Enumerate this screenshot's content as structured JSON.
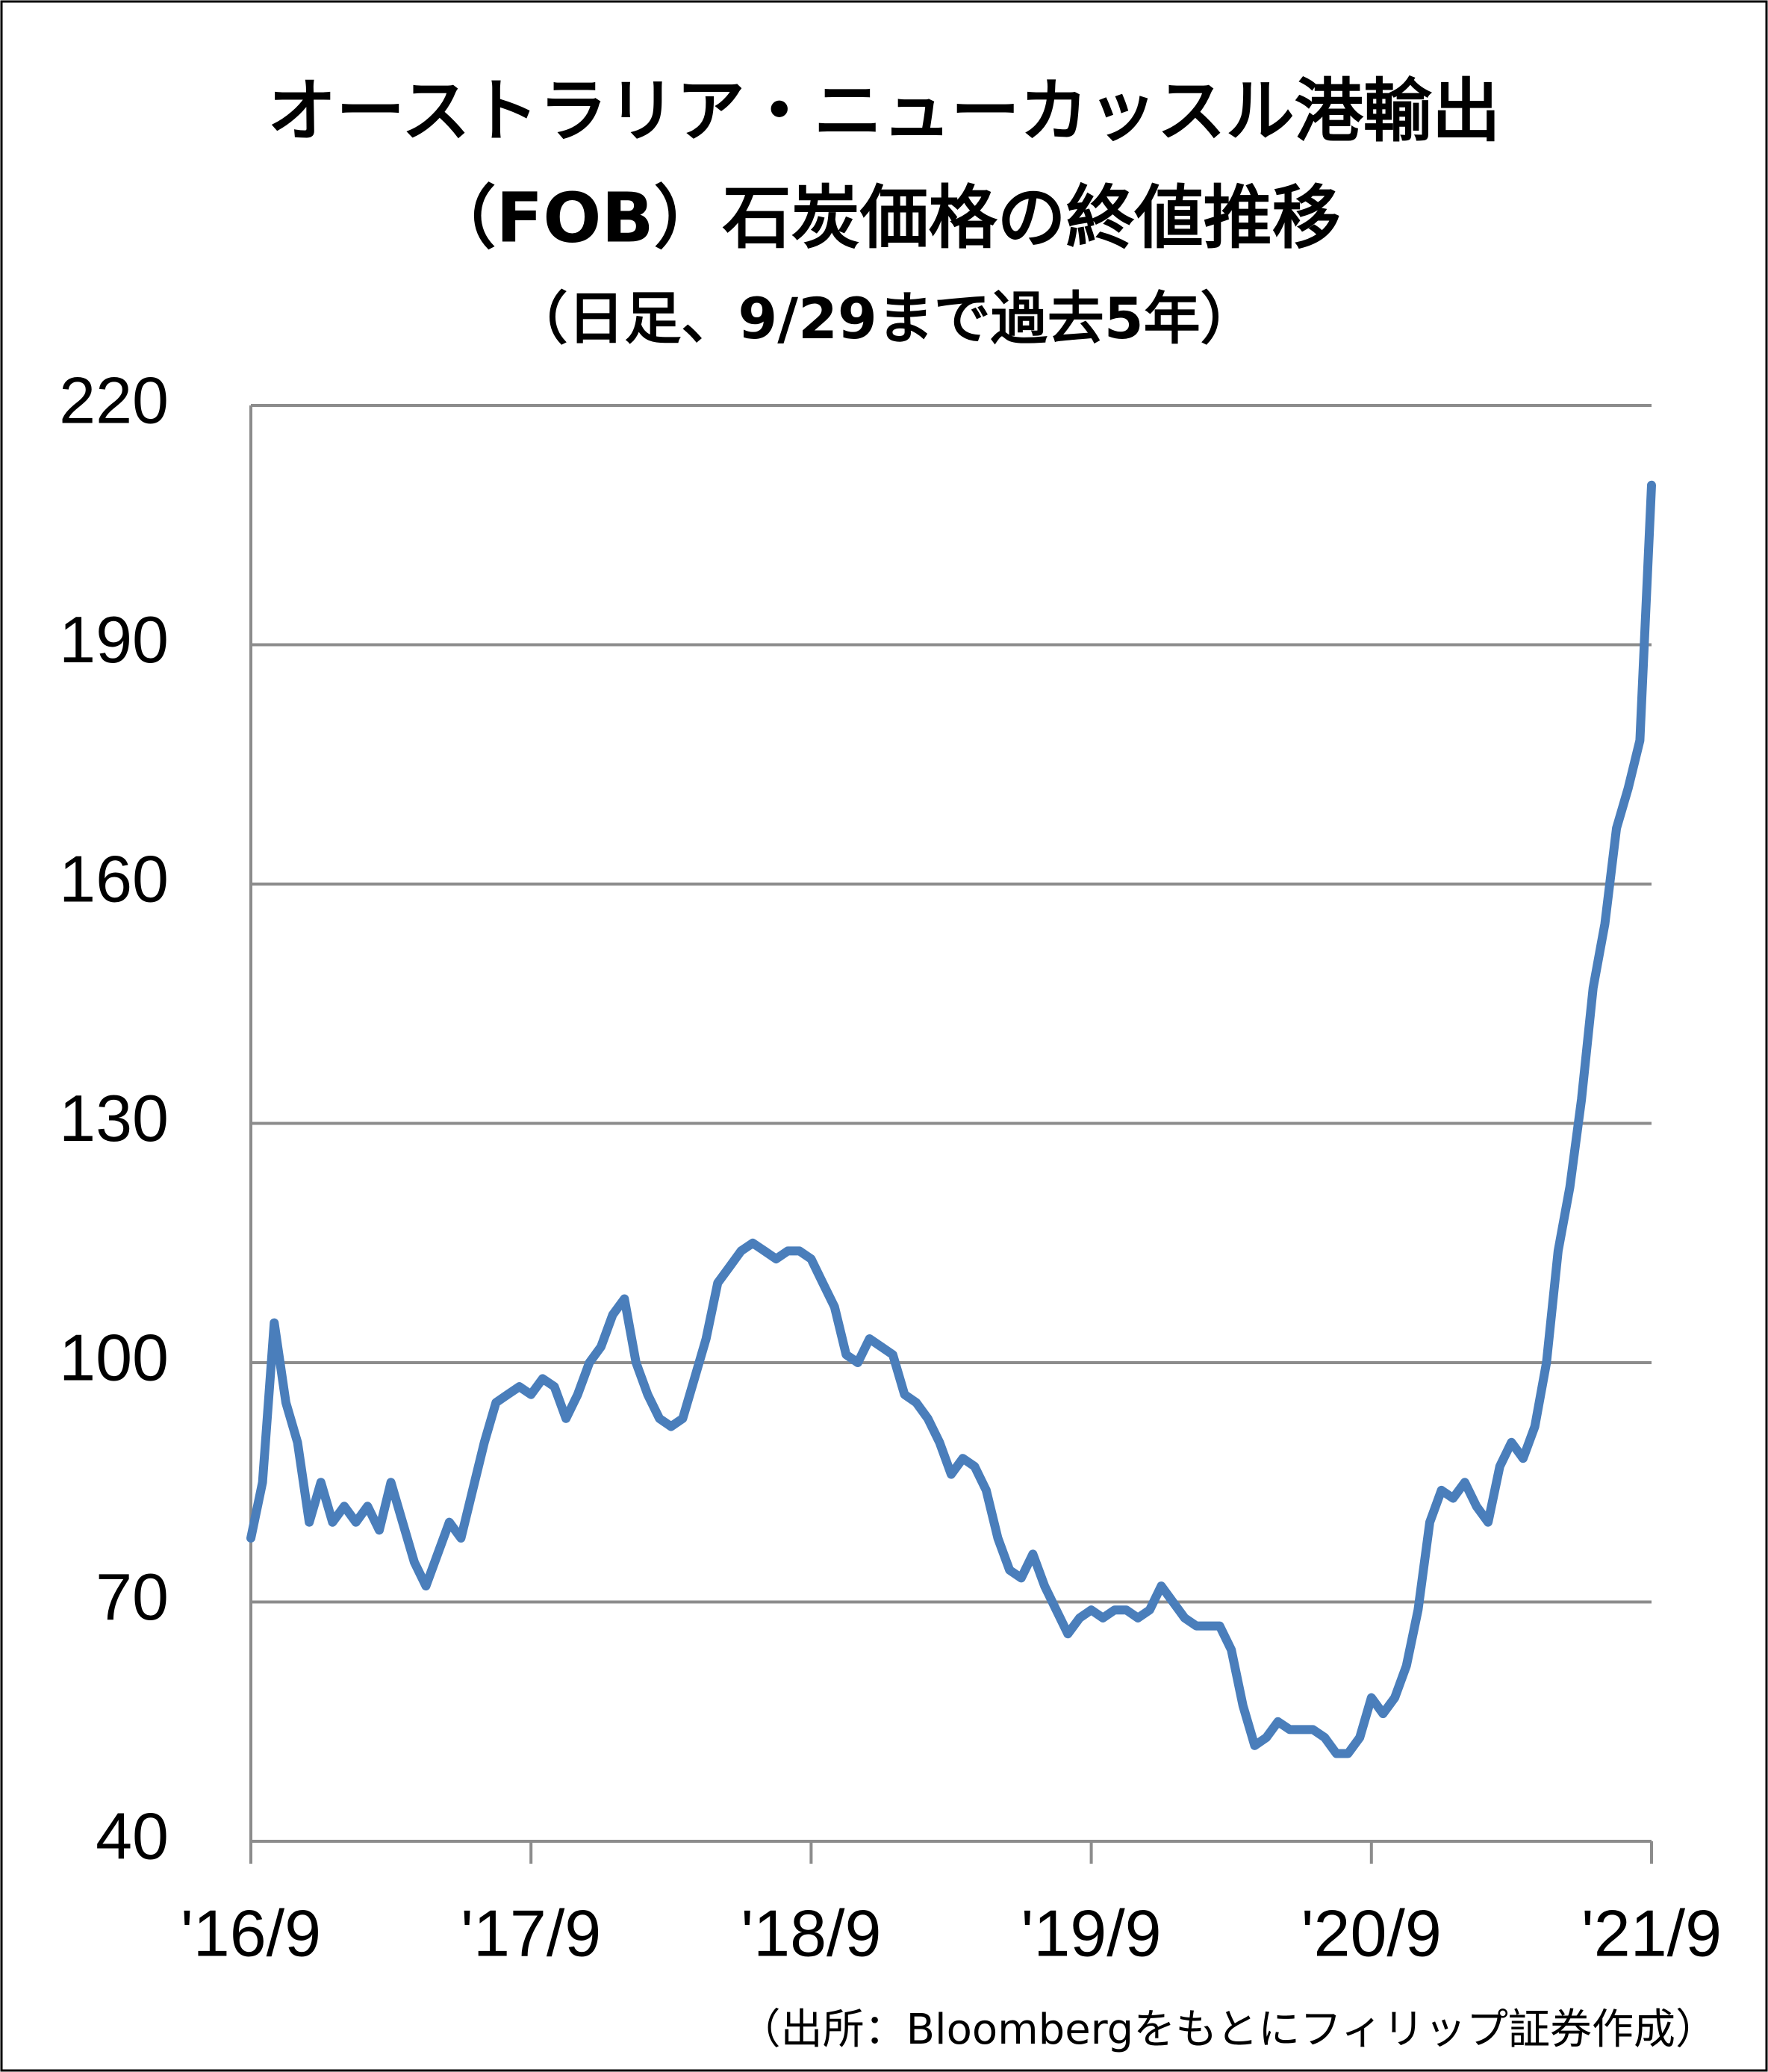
{
  "chart_data": {
    "type": "line",
    "title": [
      "オーストラリア・ニューカッスル港輸出",
      "（FOB）石炭価格の終値推移"
    ],
    "subtitle": "（日足、9/29まで過去5年）",
    "source": "（出所：Bloombergをもとにフィリップ証券作成）",
    "categories": [
      "'16/9",
      null,
      null,
      null,
      null,
      null,
      null,
      null,
      null,
      null,
      null,
      null,
      null,
      null,
      null,
      null,
      null,
      null,
      null,
      null,
      null,
      null,
      null,
      null,
      "'17/9",
      null,
      null,
      null,
      null,
      null,
      null,
      null,
      null,
      null,
      null,
      null,
      null,
      null,
      null,
      null,
      null,
      null,
      null,
      null,
      null,
      null,
      null,
      null,
      "'18/9",
      null,
      null,
      null,
      null,
      null,
      null,
      null,
      null,
      null,
      null,
      null,
      null,
      null,
      null,
      null,
      null,
      null,
      null,
      null,
      null,
      null,
      null,
      null,
      "'19/9",
      null,
      null,
      null,
      null,
      null,
      null,
      null,
      null,
      null,
      null,
      null,
      null,
      null,
      null,
      null,
      null,
      null,
      null,
      null,
      null,
      null,
      null,
      null,
      "'20/9",
      null,
      null,
      null,
      null,
      null,
      null,
      null,
      null,
      null,
      null,
      null,
      null,
      null,
      null,
      null,
      null,
      null,
      null,
      null,
      null,
      null,
      null,
      null,
      "'21/9"
    ],
    "values": [
      78,
      85,
      105,
      95,
      90,
      80,
      85,
      80,
      82,
      80,
      82,
      79,
      85,
      80,
      75,
      72,
      76,
      80,
      78,
      84,
      90,
      95,
      96,
      97,
      96,
      98,
      97,
      93,
      96,
      100,
      102,
      106,
      108,
      100,
      96,
      93,
      92,
      93,
      98,
      103,
      110,
      112,
      114,
      115,
      114,
      113,
      114,
      114,
      113,
      110,
      107,
      101,
      100,
      103,
      102,
      101,
      96,
      95,
      93,
      90,
      86,
      88,
      87,
      84,
      78,
      74,
      73,
      76,
      72,
      69,
      66,
      68,
      69,
      68,
      69,
      69,
      68,
      69,
      72,
      70,
      68,
      67,
      67,
      67,
      64,
      57,
      52,
      53,
      55,
      54,
      54,
      54,
      53,
      51,
      51,
      53,
      58,
      56,
      58,
      62,
      69,
      80,
      84,
      83,
      85,
      82,
      80,
      87,
      90,
      88,
      92,
      100,
      114,
      122,
      133,
      147,
      155,
      167,
      172,
      178,
      210
    ],
    "color": "#4a7ebb",
    "ylim": [
      40,
      220
    ],
    "yticks": [
      40,
      70,
      100,
      130,
      160,
      190,
      220
    ],
    "grid": true
  }
}
